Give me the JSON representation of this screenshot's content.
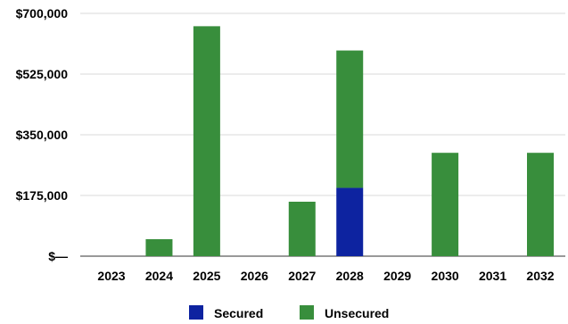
{
  "chart_data": {
    "type": "bar",
    "stacked": true,
    "categories": [
      "2023",
      "2024",
      "2025",
      "2026",
      "2027",
      "2028",
      "2029",
      "2030",
      "2031",
      "2032"
    ],
    "series": [
      {
        "name": "Secured",
        "color": "#0d23a0",
        "values": [
          0,
          0,
          0,
          0,
          0,
          197000,
          0,
          0,
          0,
          0
        ]
      },
      {
        "name": "Unsecured",
        "color": "#388e3c",
        "values": [
          0,
          49000,
          663000,
          0,
          157000,
          396000,
          0,
          298000,
          0,
          298000
        ]
      }
    ],
    "y_ticks": [
      0,
      175000,
      350000,
      525000,
      700000
    ],
    "y_tick_labels": [
      "$—",
      "$175,000",
      "$350,000",
      "$525,000",
      "$700,000"
    ],
    "ylim": [
      0,
      700000
    ],
    "title": "",
    "xlabel": "",
    "ylabel": "",
    "grid": true,
    "legend_position": "bottom-center"
  }
}
